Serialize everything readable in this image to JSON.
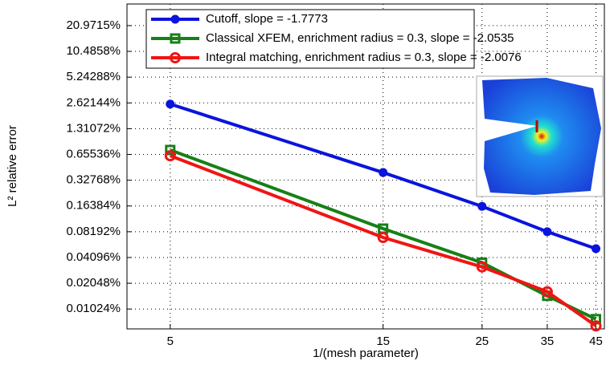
{
  "chart_data": {
    "type": "line",
    "x_label": "1/(mesh parameter)",
    "y_label": "L² relative error",
    "x": [
      5,
      15,
      25,
      35,
      45
    ],
    "xlim": [
      4,
      47
    ],
    "xticks": [
      5,
      15,
      25,
      35,
      45
    ],
    "xscale": "log",
    "ylim": [
      0.006,
      37.5
    ],
    "yscale": "log",
    "yticks": [
      {
        "value": 0.01024,
        "label": "0.01024%"
      },
      {
        "value": 0.02048,
        "label": "0.02048%"
      },
      {
        "value": 0.04096,
        "label": "0.04096%"
      },
      {
        "value": 0.08192,
        "label": "0.08192%"
      },
      {
        "value": 0.16384,
        "label": "0.16384%"
      },
      {
        "value": 0.32768,
        "label": "0.32768%"
      },
      {
        "value": 0.65536,
        "label": "0.65536%"
      },
      {
        "value": 1.31072,
        "label": "1.31072%"
      },
      {
        "value": 2.62144,
        "label": "2.62144%"
      },
      {
        "value": 5.24288,
        "label": "5.24288%"
      },
      {
        "value": 10.4858,
        "label": "10.4858%"
      },
      {
        "value": 20.9715,
        "label": "20.9715%"
      }
    ],
    "grid": true,
    "legend": "upper left",
    "series": [
      {
        "name": "Cutoff, slope = -1.7773",
        "color": "#0a14dc",
        "marker": "circle",
        "values": [
          2.54,
          0.403,
          0.162,
          0.0819,
          0.0519
        ]
      },
      {
        "name": "Classical XFEM, enrichment radius = 0.3, slope = -2.0535",
        "color": "#168016",
        "marker": "square",
        "values": [
          0.738,
          0.089,
          0.0356,
          0.0146,
          0.0078
        ]
      },
      {
        "name": "Integral matching, enrichment radius = 0.3, slope = -2.0076",
        "color": "#f01414",
        "marker": "open-circle",
        "values": [
          0.633,
          0.0702,
          0.0318,
          0.0163,
          0.0065
        ]
      }
    ]
  }
}
